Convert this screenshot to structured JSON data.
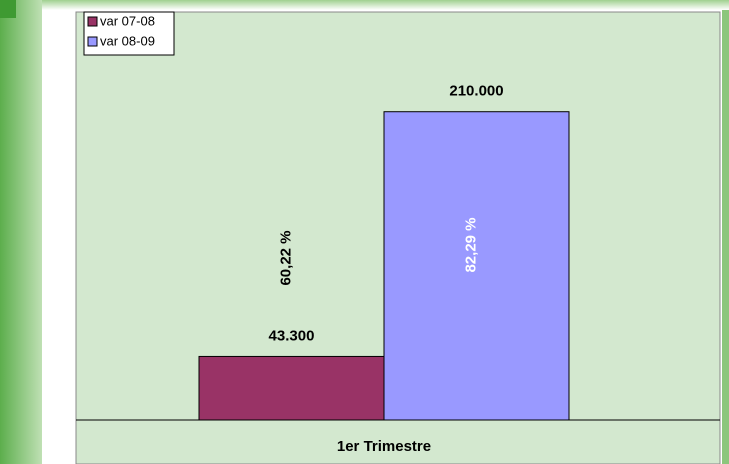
{
  "chart_data": {
    "type": "bar",
    "categories": [
      "1er Trimestre"
    ],
    "series": [
      {
        "name": "var 07-08",
        "color": "#993366",
        "values": [
          43300
        ],
        "value_labels": [
          "43.300"
        ]
      },
      {
        "name": "var 08-09",
        "color": "#9999ff",
        "values": [
          210000
        ],
        "value_labels": [
          "210.000"
        ]
      }
    ],
    "annotations": [
      "60,22 %",
      "82,29 %"
    ],
    "annotation_colors": [
      "#000000",
      "#ffffff"
    ],
    "ylim": [
      0,
      250000
    ],
    "legend": "top-left"
  }
}
